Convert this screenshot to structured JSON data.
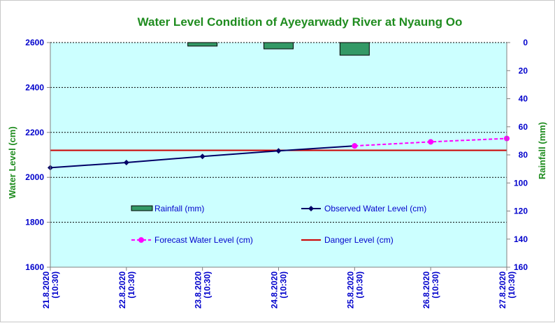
{
  "chart_data": {
    "type": "line",
    "title": "Water Level Condition  of Ayeyarwady  River at Nyaung Oo",
    "ylabel_left": "Water Level (cm)",
    "ylabel_right": "Rainfall (mm)",
    "categories": [
      "21.8.2020\n(10:30)",
      "22.8.2020\n(10:30)",
      "23.8.2020\n(10:30)",
      "24.8.2020\n(10:30)",
      "25.8.2020\n(10:30)",
      "26.8.2020\n(10:30)",
      "27.8.2020\n(10:30)"
    ],
    "ylim_left": [
      1600,
      2600
    ],
    "yticks_left": [
      1600,
      1800,
      2000,
      2200,
      2400,
      2600
    ],
    "ylim_right": [
      160,
      0
    ],
    "yticks_right": [
      0,
      20,
      40,
      60,
      80,
      100,
      120,
      140,
      160
    ],
    "grid": "horizontal",
    "plot_background": "#ccffff",
    "series": [
      {
        "name": "Rainfall (mm)",
        "kind": "bar",
        "axis": "right",
        "color": "#339966",
        "values": [
          0,
          0,
          2.5,
          4.5,
          9,
          0,
          0
        ]
      },
      {
        "name": "Observed Water Level (cm)",
        "kind": "line",
        "axis": "left",
        "color": "#000066",
        "marker": "diamond",
        "values": [
          2043,
          2066,
          2093,
          2118,
          2140,
          null,
          null
        ]
      },
      {
        "name": "Forecast Water Level (cm)",
        "kind": "dashed-line",
        "axis": "left",
        "color": "#ff00ff",
        "marker": "circle",
        "values": [
          null,
          null,
          null,
          null,
          2140,
          2158,
          2173
        ]
      },
      {
        "name": "Danger Level (cm)",
        "kind": "hline",
        "axis": "left",
        "color": "#cc0000",
        "value": 2120
      }
    ],
    "legend_placement": "inside-lower"
  }
}
